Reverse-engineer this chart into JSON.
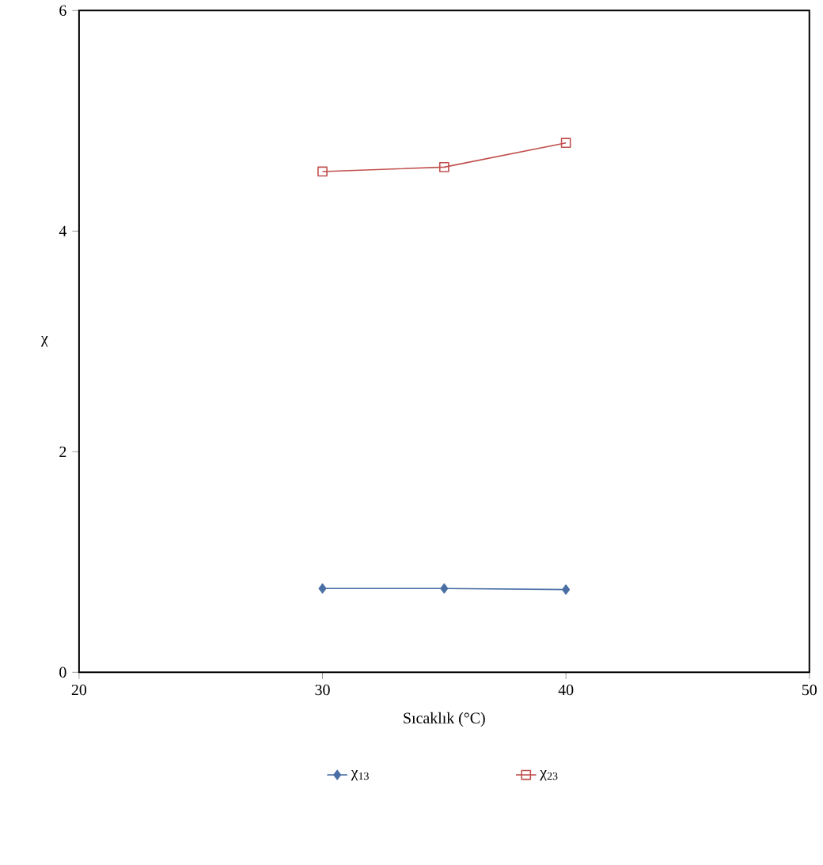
{
  "chart_data": {
    "type": "line",
    "xlabel": "Sıcaklık (°C)",
    "ylabel": "χ",
    "x": [
      30,
      35,
      40
    ],
    "series": [
      {
        "name": "χ$_{13}$",
        "color": "#4a6fa5",
        "values": [
          0.76,
          0.76,
          0.75
        ],
        "marker": "diamond"
      },
      {
        "name": "χ$_{23}$",
        "color": "#c0504d",
        "values": [
          4.54,
          4.58,
          4.8
        ],
        "marker": "square"
      }
    ],
    "xlim": [
      20,
      50
    ],
    "ylim": [
      0,
      6
    ],
    "xticks": [
      20,
      30,
      40,
      50
    ],
    "yticks": [
      0,
      2,
      4,
      6
    ],
    "grid": false,
    "legend": "bottom",
    "line_style": "solid"
  }
}
